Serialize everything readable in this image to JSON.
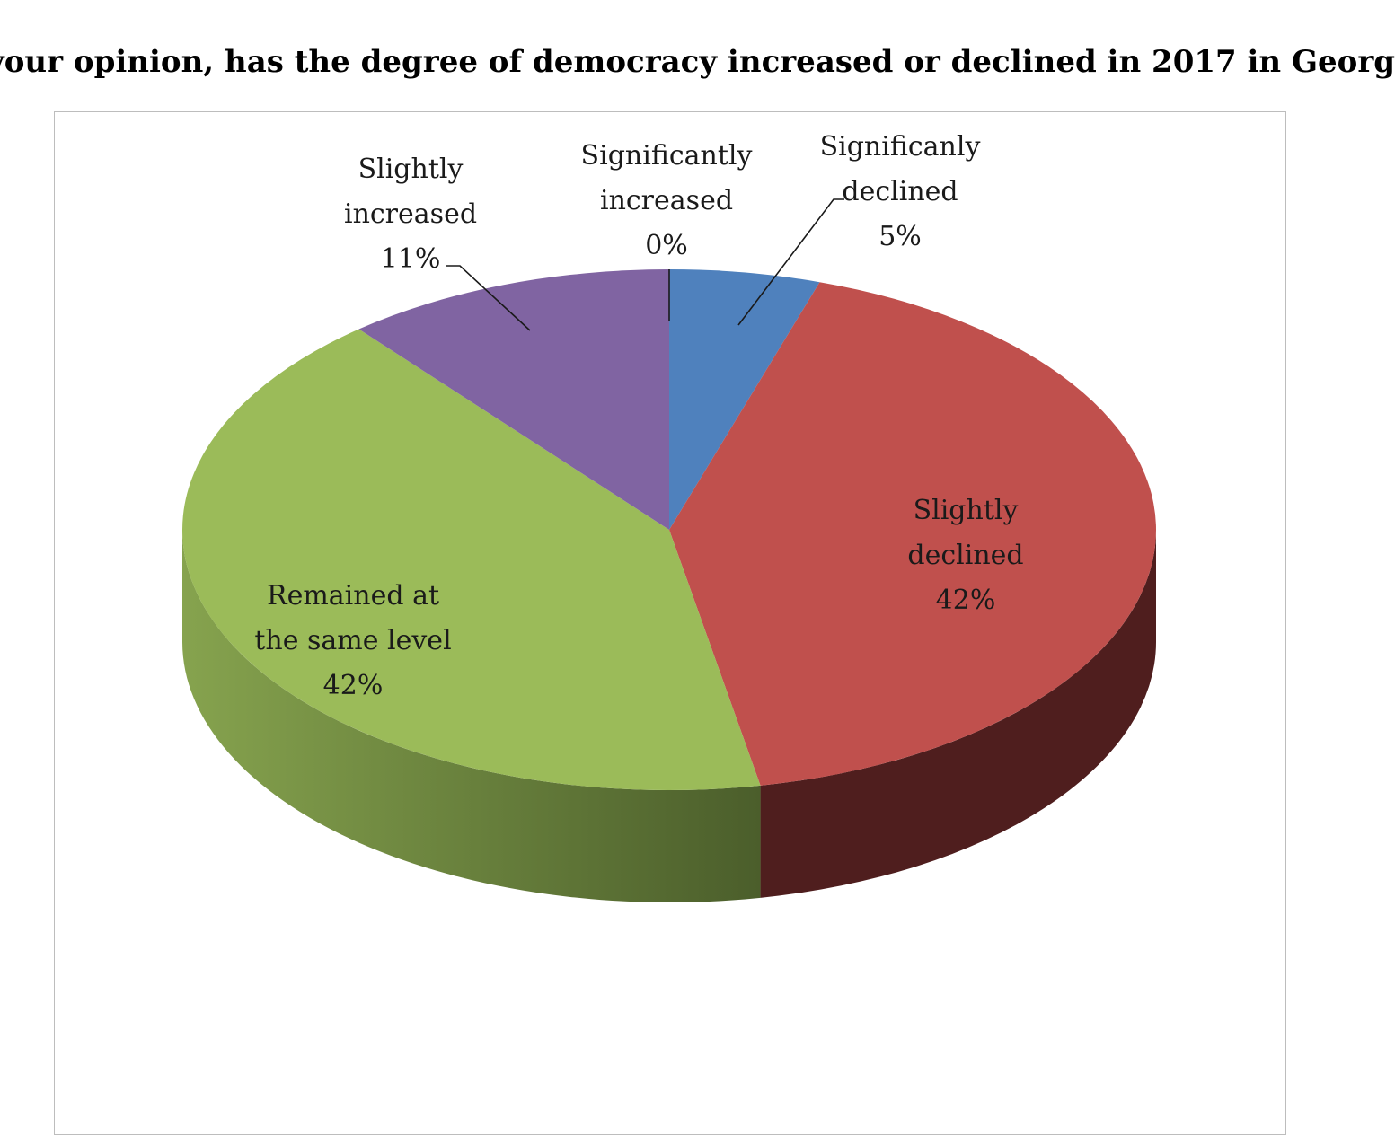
{
  "chart_data": {
    "type": "pie",
    "title": "your opinion, has the degree of democracy increased or declined in 2017 in Georg",
    "slices": [
      {
        "name": "Significanly declined",
        "line1": "Significanly",
        "line2": "declined",
        "value": 5,
        "value_label": "5%",
        "color": "#4f81bd",
        "side": "#2a4466"
      },
      {
        "name": "Slightly declined",
        "line1": "Slightly",
        "line2": "declined",
        "value": 42,
        "value_label": "42%",
        "color": "#c0504d",
        "side": "#4f1e1e"
      },
      {
        "name": "Remained at the same level",
        "line1": "Remained at",
        "line2": "the same level",
        "value": 42,
        "value_label": "42%",
        "color": "#9bbb59",
        "side": "#6a8a3a"
      },
      {
        "name": "Slightly increased",
        "line1": "Slightly",
        "line2": "increased",
        "value": 11,
        "value_label": "11%",
        "color": "#8064a2",
        "side": "#4a3a60"
      },
      {
        "name": "Significantly increased",
        "line1": "Significantly",
        "line2": "increased",
        "value": 0,
        "value_label": "0%",
        "color": "#4f81bd",
        "side": "#2a4466"
      }
    ]
  }
}
